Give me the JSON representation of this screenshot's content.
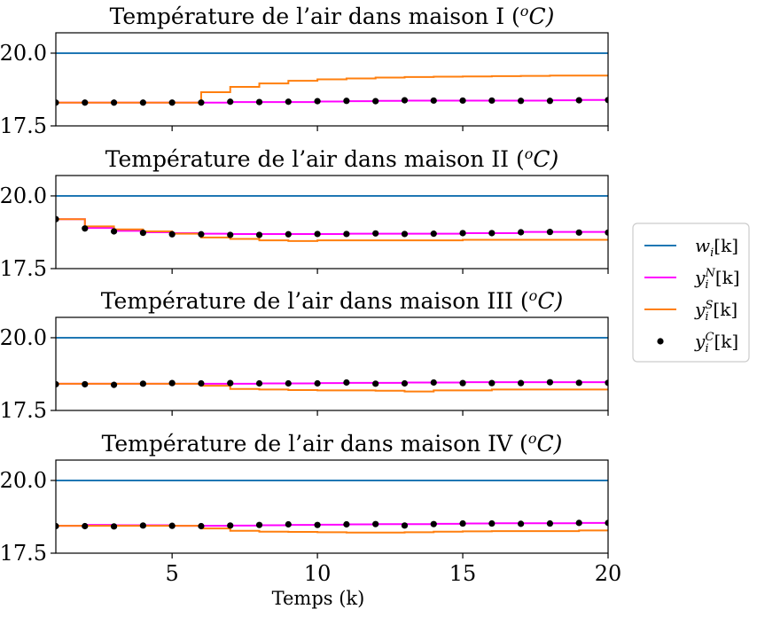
{
  "chart_data": {
    "type": "line",
    "xlabel": "Temps (k)",
    "xlim": [
      1,
      20
    ],
    "xticks": [
      "5",
      "10",
      "15",
      "20"
    ],
    "ylim": [
      17.5,
      20.7
    ],
    "yticks": [
      "17.5",
      "20.0"
    ],
    "legend": {
      "placement": "right",
      "entries": [
        {
          "key": "w",
          "base": "w",
          "sub": "i",
          "sup": "",
          "arg": "[k]",
          "color": "#1f77b4",
          "marker": "line"
        },
        {
          "key": "yN",
          "base": "y",
          "sub": "i",
          "sup": "N",
          "arg": "[k]",
          "color": "#ff00ff",
          "marker": "line"
        },
        {
          "key": "yS",
          "base": "y",
          "sub": "i",
          "sup": "S",
          "arg": "[k]",
          "color": "#ff7f0e",
          "marker": "line"
        },
        {
          "key": "yC",
          "base": "y",
          "sub": "i",
          "sup": "C",
          "arg": "[k]",
          "color": "#000000",
          "marker": "dot"
        }
      ]
    },
    "panels": [
      {
        "title": "Température de l’air dans maison I (",
        "title_sup": "o",
        "title_unit": "C)",
        "x": [
          1,
          2,
          3,
          4,
          5,
          6,
          7,
          8,
          9,
          10,
          11,
          12,
          13,
          14,
          15,
          16,
          17,
          18,
          19,
          20
        ],
        "w": [
          20.0,
          20.0,
          20.0,
          20.0,
          20.0,
          20.0,
          20.0,
          20.0,
          20.0,
          20.0,
          20.0,
          20.0,
          20.0,
          20.0,
          20.0,
          20.0,
          20.0,
          20.0,
          20.0,
          20.0
        ],
        "yN": [
          18.3,
          18.3,
          18.3,
          18.3,
          18.3,
          18.3,
          18.32,
          18.32,
          18.32,
          18.34,
          18.35,
          18.36,
          18.37,
          18.37,
          18.37,
          18.37,
          18.37,
          18.38,
          18.39,
          18.39
        ],
        "yS": [
          18.3,
          18.3,
          18.3,
          18.3,
          18.3,
          18.66,
          18.84,
          18.96,
          19.05,
          19.1,
          19.13,
          19.16,
          19.18,
          19.19,
          19.2,
          19.21,
          19.22,
          19.23,
          19.23,
          19.24
        ],
        "yC": [
          18.3,
          18.3,
          18.3,
          18.3,
          18.3,
          18.3,
          18.33,
          18.32,
          18.33,
          18.35,
          18.36,
          18.35,
          18.38,
          18.37,
          18.37,
          18.37,
          18.36,
          18.36,
          18.38,
          18.39
        ]
      },
      {
        "title": "Température de l’air dans maison II (",
        "title_sup": "o",
        "title_unit": "C)",
        "x": [
          1,
          2,
          3,
          4,
          5,
          6,
          7,
          8,
          9,
          10,
          11,
          12,
          13,
          14,
          15,
          16,
          17,
          18,
          19,
          20
        ],
        "w": [
          20.0,
          20.0,
          20.0,
          20.0,
          20.0,
          20.0,
          20.0,
          20.0,
          20.0,
          20.0,
          20.0,
          20.0,
          20.0,
          20.0,
          20.0,
          20.0,
          20.0,
          20.0,
          20.0,
          20.0
        ],
        "yN": [
          19.2,
          18.9,
          18.8,
          18.75,
          18.72,
          18.7,
          18.69,
          18.69,
          18.69,
          18.69,
          18.7,
          18.7,
          18.7,
          18.7,
          18.72,
          18.72,
          18.76,
          18.76,
          18.76,
          18.76
        ],
        "yS": [
          19.2,
          18.95,
          18.85,
          18.78,
          18.7,
          18.57,
          18.52,
          18.47,
          18.45,
          18.47,
          18.47,
          18.47,
          18.47,
          18.47,
          18.49,
          18.49,
          18.49,
          18.49,
          18.49,
          18.49
        ],
        "yC": [
          19.2,
          18.88,
          18.78,
          18.73,
          18.68,
          18.68,
          18.66,
          18.66,
          18.68,
          18.69,
          18.69,
          18.71,
          18.69,
          18.7,
          18.72,
          18.72,
          18.75,
          18.76,
          18.74,
          18.74
        ]
      },
      {
        "title": "Température de l’air dans maison III (",
        "title_sup": "o",
        "title_unit": "C)",
        "x": [
          1,
          2,
          3,
          4,
          5,
          6,
          7,
          8,
          9,
          10,
          11,
          12,
          13,
          14,
          15,
          16,
          17,
          18,
          19,
          20
        ],
        "w": [
          20.0,
          20.0,
          20.0,
          20.0,
          20.0,
          20.0,
          20.0,
          20.0,
          20.0,
          20.0,
          20.0,
          20.0,
          20.0,
          20.0,
          20.0,
          20.0,
          20.0,
          20.0,
          20.0,
          20.0
        ],
        "yN": [
          18.42,
          18.42,
          18.42,
          18.42,
          18.42,
          18.42,
          18.42,
          18.43,
          18.43,
          18.44,
          18.45,
          18.45,
          18.46,
          18.46,
          18.47,
          18.47,
          18.47,
          18.47,
          18.47,
          18.47
        ],
        "yS": [
          18.42,
          18.42,
          18.42,
          18.42,
          18.42,
          18.35,
          18.24,
          18.22,
          18.2,
          18.19,
          18.19,
          18.18,
          18.15,
          18.19,
          18.19,
          18.22,
          18.22,
          18.22,
          18.22,
          18.22
        ],
        "yC": [
          18.4,
          18.4,
          18.38,
          18.42,
          18.44,
          18.43,
          18.44,
          18.43,
          18.43,
          18.43,
          18.46,
          18.42,
          18.43,
          18.46,
          18.44,
          18.44,
          18.44,
          18.47,
          18.45,
          18.45
        ]
      },
      {
        "title": "Température de l’air dans maison IV (",
        "title_sup": "o",
        "title_unit": "C)",
        "x": [
          1,
          2,
          3,
          4,
          5,
          6,
          7,
          8,
          9,
          10,
          11,
          12,
          13,
          14,
          15,
          16,
          17,
          18,
          19,
          20
        ],
        "w": [
          20.0,
          20.0,
          20.0,
          20.0,
          20.0,
          20.0,
          20.0,
          20.0,
          20.0,
          20.0,
          20.0,
          20.0,
          20.0,
          20.0,
          20.0,
          20.0,
          20.0,
          20.0,
          20.0,
          20.0
        ],
        "yN": [
          18.44,
          18.47,
          18.46,
          18.46,
          18.44,
          18.44,
          18.45,
          18.46,
          18.47,
          18.48,
          18.49,
          18.5,
          18.5,
          18.51,
          18.52,
          18.53,
          18.53,
          18.53,
          18.54,
          18.55
        ],
        "yS": [
          18.44,
          18.44,
          18.44,
          18.44,
          18.44,
          18.35,
          18.27,
          18.24,
          18.23,
          18.22,
          18.21,
          18.21,
          18.22,
          18.24,
          18.25,
          18.26,
          18.26,
          18.26,
          18.28,
          18.29
        ],
        "yC": [
          18.43,
          18.43,
          18.42,
          18.45,
          18.44,
          18.43,
          18.45,
          18.47,
          18.49,
          18.47,
          18.49,
          18.5,
          18.45,
          18.5,
          18.52,
          18.52,
          18.51,
          18.52,
          18.54,
          18.54
        ]
      }
    ]
  }
}
